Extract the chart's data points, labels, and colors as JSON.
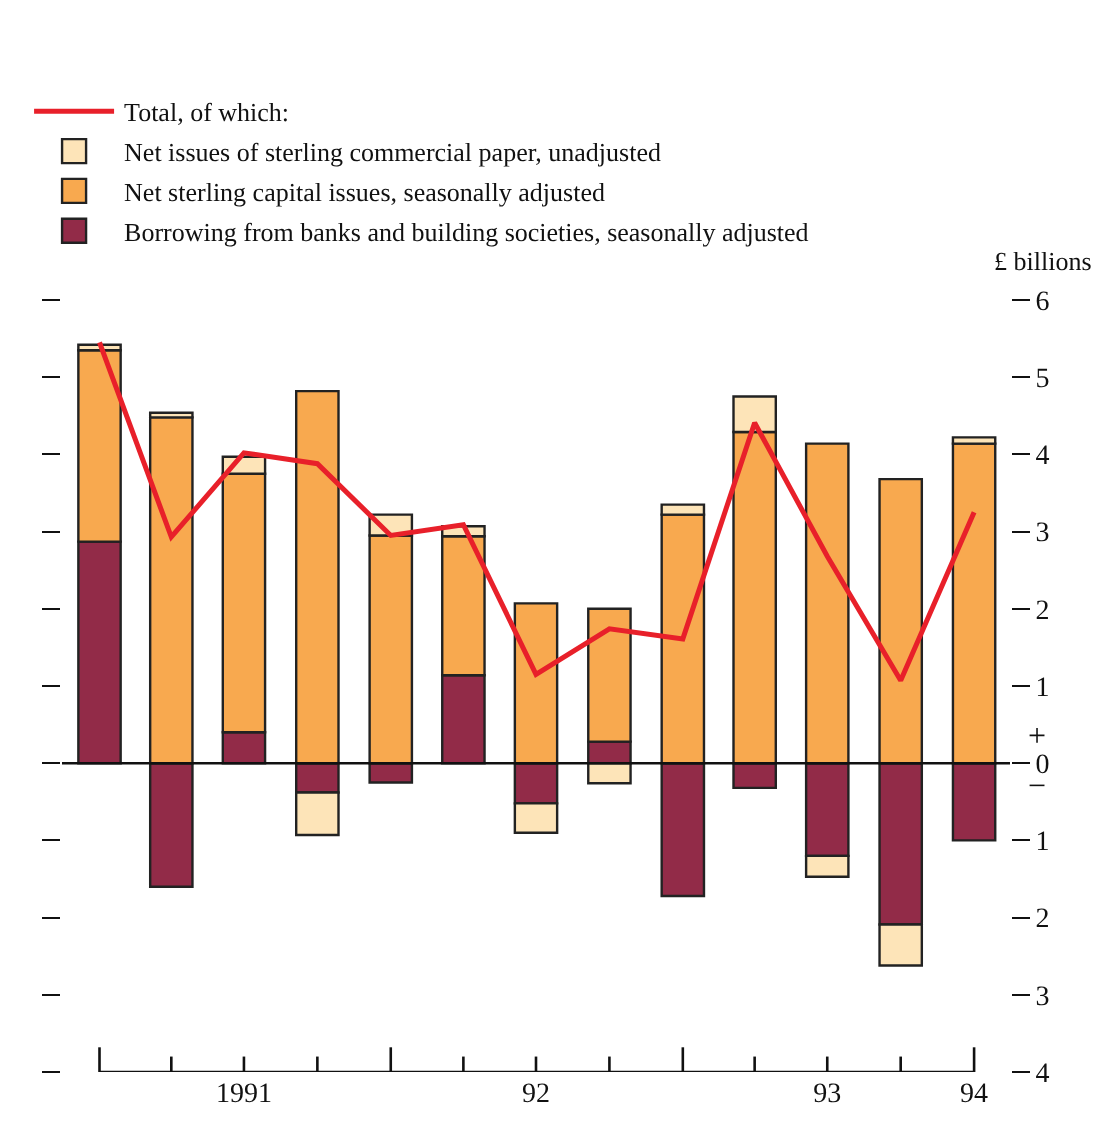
{
  "chart_data": {
    "type": "bar",
    "stacked": true,
    "ylabel": "£ billions",
    "x": [
      "1991-01-01",
      "1991-04-01",
      "1991-07-01",
      "1991-10-01",
      "1992-01-01",
      "1992-04-01",
      "1992-07-01",
      "1992-10-01",
      "1993-01-01",
      "1993-04-01",
      "1993-07-01",
      "1993-10-01",
      "1994-01-01"
    ],
    "series": [
      {
        "name": "Borrowing from banks and building societies, seasonally adjusted",
        "color": "#922b48",
        "values": [
          2.87,
          -1.6,
          0.4,
          -0.38,
          -0.25,
          1.14,
          -0.52,
          0.28,
          -1.72,
          -0.32,
          -1.2,
          -2.09,
          -1.0
        ]
      },
      {
        "name": "Net sterling capital issues, seasonally adjusted",
        "color": "#f8a94f",
        "values": [
          2.48,
          4.48,
          3.35,
          4.82,
          2.95,
          1.8,
          2.07,
          1.72,
          3.22,
          4.29,
          4.14,
          3.68,
          4.14
        ]
      },
      {
        "name": "Net issues of sterling commercial paper, unadjusted",
        "color": "#fde4b8",
        "values": [
          0.07,
          0.06,
          0.22,
          -0.55,
          0.27,
          0.13,
          -0.38,
          -0.26,
          0.13,
          0.46,
          -0.27,
          -0.53,
          0.08
        ]
      },
      {
        "name": "Total, of which:",
        "type": "line",
        "color": "#e8202a",
        "values": [
          5.45,
          2.93,
          4.02,
          3.88,
          2.95,
          3.09,
          1.15,
          1.74,
          1.61,
          4.41,
          2.68,
          1.07,
          3.25
        ]
      }
    ],
    "xlim": [
      "1990-11-15",
      "1994-02-15"
    ],
    "xticks": [
      {
        "value": "1991-01-01",
        "label": null
      },
      {
        "value": "1991-04-01",
        "label": null
      },
      {
        "value": "1991-07-01",
        "label": "1991"
      },
      {
        "value": "1991-07-01",
        "label": null
      },
      {
        "value": "1991-10-01",
        "label": null
      },
      {
        "value": "1992-01-01",
        "label": null
      },
      {
        "value": "1992-04-01",
        "label": null
      },
      {
        "value": "1992-07-01",
        "label": "92"
      },
      {
        "value": "1992-07-01",
        "label": null
      },
      {
        "value": "1992-10-01",
        "label": null
      },
      {
        "value": "1993-01-01",
        "label": null
      },
      {
        "value": "1993-04-01",
        "label": null
      },
      {
        "value": "1993-07-01",
        "label": "93"
      },
      {
        "value": "1993-07-01",
        "label": null
      },
      {
        "value": "1993-10-01",
        "label": null
      },
      {
        "value": "1994-01-01",
        "label": "94"
      },
      {
        "value": "1994-01-01",
        "label": null
      }
    ],
    "ylim": [
      -4,
      6
    ],
    "yticks": [
      {
        "value": -4,
        "label": "4"
      },
      {
        "value": -3,
        "label": "3"
      },
      {
        "value": -2,
        "label": "2"
      },
      {
        "value": -1,
        "label": "1"
      },
      0,
      1,
      2,
      3,
      4,
      5,
      6
    ],
    "annotations": [
      "+",
      "−"
    ],
    "ref_lines": [
      {
        "axis": "y",
        "value": 0,
        "color": "#111111"
      }
    ],
    "legend": "top",
    "marker": "none",
    "line_style": "solid"
  }
}
